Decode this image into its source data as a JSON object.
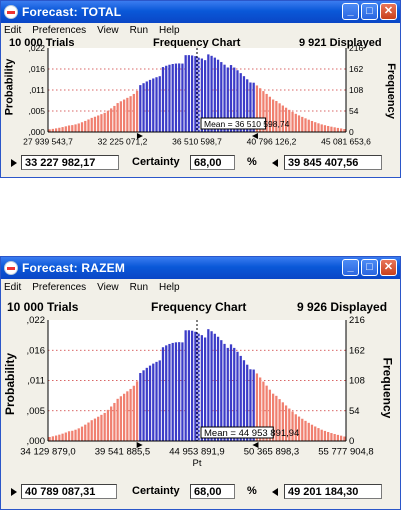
{
  "windows": [
    {
      "title": "Forecast: TOTAL",
      "menu": [
        "Edit",
        "Preferences",
        "View",
        "Run",
        "Help"
      ],
      "trials": "10 000 Trials",
      "chart_title": "Frequency Chart",
      "displayed": "9 921 Displayed",
      "y_left_label": "Probability",
      "y_right_label": "Frequency",
      "x_label": "",
      "y_left_ticks": [
        ",022",
        ",016",
        ",011",
        ",005",
        ",000"
      ],
      "y_right_ticks": [
        "216",
        "162",
        "108",
        "54",
        "0"
      ],
      "x_ticks": [
        "27 939 543,7",
        "32 225 071,2",
        "36 510 598,7",
        "40 796 126,2",
        "45 081 653,6"
      ],
      "mean_label": "Mean = 36 510 598,74",
      "certainty_label": "Certainty",
      "lower_value": "33 227 982,17",
      "certainty_value": "68,00",
      "percent_label": "%",
      "upper_value": "39 845 407,56",
      "colors": {
        "inside": "#3c3cc8",
        "outside": "#f08070"
      }
    },
    {
      "title": "Forecast: RAZEM",
      "menu": [
        "Edit",
        "Preferences",
        "View",
        "Run",
        "Help"
      ],
      "trials": "10 000 Trials",
      "chart_title": "Frequency Chart",
      "displayed": "9 926 Displayed",
      "y_left_label": "Probability",
      "y_right_label": "Frequency",
      "x_label": "Pt",
      "y_left_ticks": [
        ",022",
        ",016",
        ",011",
        ",005",
        ",000"
      ],
      "y_right_ticks": [
        "216",
        "162",
        "108",
        "54",
        "0"
      ],
      "x_ticks": [
        "34 129 879,0",
        "39 541 885,5",
        "44 953 891,9",
        "50 365 898,3",
        "55 777 904,8"
      ],
      "mean_label": "Mean = 44 953 891,94",
      "certainty_label": "Certainty",
      "lower_value": "40 789 087,31",
      "certainty_value": "68,00",
      "percent_label": "%",
      "upper_value": "49 201 184,30",
      "colors": {
        "inside": "#3c3cc8",
        "outside": "#f08070"
      }
    }
  ],
  "chart_data": [
    {
      "type": "bar",
      "title": "Frequency Chart",
      "ylabel": "Probability",
      "y2label": "Frequency",
      "ylim": [
        0,
        0.022
      ],
      "y2lim": [
        0,
        216
      ],
      "xlim": [
        27939543.7,
        45081653.6
      ],
      "mean": 36510598.74,
      "certainty_range": [
        33227982.17,
        39845407.56
      ],
      "certainty": 68.0,
      "distribution": "approximately normal, peak frequency about 216"
    },
    {
      "type": "bar",
      "title": "Frequency Chart",
      "xlabel": "Pt",
      "ylabel": "Probability",
      "y2label": "Frequency",
      "ylim": [
        0,
        0.022
      ],
      "y2lim": [
        0,
        216
      ],
      "xlim": [
        34129879.0,
        55777904.8
      ],
      "mean": 44953891.94,
      "certainty_range": [
        40789087.31,
        49201184.3
      ],
      "certainty": 68.0,
      "distribution": "approximately normal, peak frequency about 216"
    }
  ]
}
